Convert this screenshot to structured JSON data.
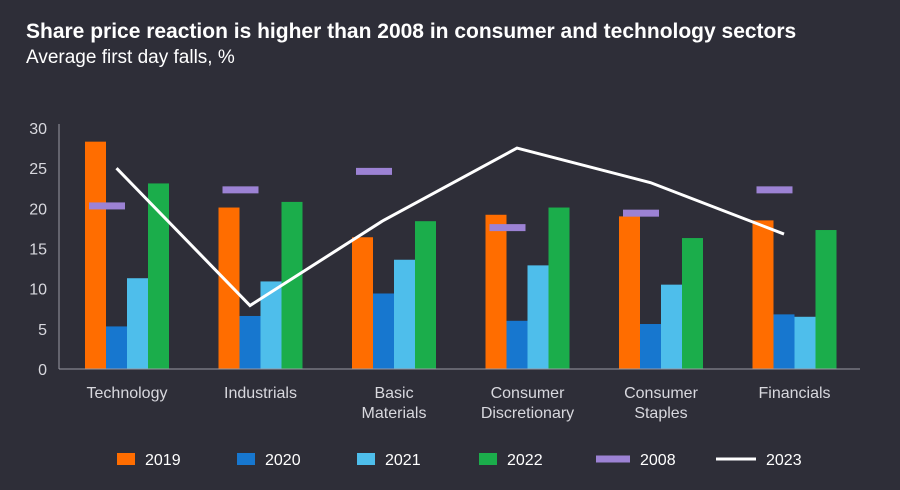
{
  "chart_data": {
    "type": "bar",
    "title": "Share price reaction is higher than 2008 in consumer and technology sectors",
    "subtitle": "Average first day falls, %",
    "xlabel": "",
    "ylabel": "",
    "ylim": [
      0,
      30
    ],
    "yticks": [
      "0",
      "5",
      "10",
      "15",
      "20",
      "25",
      "30"
    ],
    "categories": [
      [
        "Technology"
      ],
      [
        "Industrials"
      ],
      [
        "Basic",
        "Materials"
      ],
      [
        "Consumer",
        "Discretionary"
      ],
      [
        "Consumer",
        "Staples"
      ],
      [
        "Financials"
      ]
    ],
    "series": [
      {
        "name": "2019",
        "kind": "bar",
        "color": "#ff6d00",
        "values": [
          28.3,
          20.1,
          16.4,
          19.2,
          19.0,
          18.5
        ]
      },
      {
        "name": "2020",
        "kind": "bar",
        "color": "#1777cf",
        "values": [
          5.3,
          6.6,
          9.4,
          6.0,
          5.6,
          6.8
        ]
      },
      {
        "name": "2021",
        "kind": "bar",
        "color": "#4ebeeb",
        "values": [
          11.3,
          10.9,
          13.6,
          12.9,
          10.5,
          6.5
        ]
      },
      {
        "name": "2022",
        "kind": "bar",
        "color": "#1bad4b",
        "values": [
          23.1,
          20.8,
          18.4,
          20.1,
          16.3,
          17.3
        ]
      },
      {
        "name": "2008",
        "kind": "marker",
        "color": "#9c82d4",
        "values": [
          20.3,
          22.3,
          24.6,
          17.6,
          19.4,
          22.3
        ]
      },
      {
        "name": "2023",
        "kind": "line",
        "color": "#ffffff",
        "values": [
          25.0,
          7.9,
          18.5,
          27.5,
          23.2,
          16.8
        ]
      }
    ],
    "legend_position": "bottom"
  }
}
